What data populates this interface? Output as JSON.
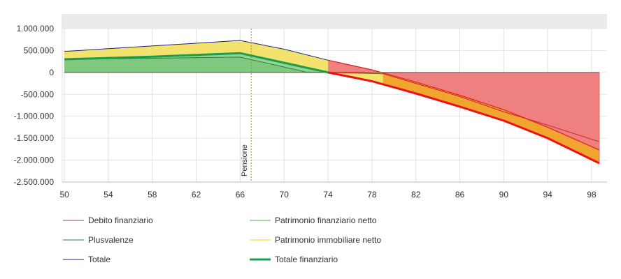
{
  "chart_data": {
    "type": "area",
    "x": [
      50,
      66,
      74,
      98.7
    ],
    "xticks": [
      50,
      54,
      58,
      62,
      66,
      70,
      74,
      78,
      82,
      86,
      90,
      94,
      98
    ],
    "xlim": [
      49.8,
      99.4
    ],
    "ylim": [
      -2500000,
      1000000
    ],
    "yticks": [
      {
        "value": 1000000,
        "label": "1.000.000"
      },
      {
        "value": 500000,
        "label": "500.000"
      },
      {
        "value": 0,
        "label": "0"
      },
      {
        "value": -500000,
        "label": "-500.000"
      },
      {
        "value": -1000000,
        "label": "-1.000.000"
      },
      {
        "value": -1500000,
        "label": "-1.500.000"
      },
      {
        "value": -2000000,
        "label": "-2.000.000"
      },
      {
        "value": -2500000,
        "label": "-2.500.000"
      }
    ],
    "grid": true,
    "legend_position": "bottom",
    "series": [
      {
        "name": "Debito finanziario",
        "color": "#8b4a4a",
        "fill": "#ee6666",
        "points": [
          [
            50,
            0
          ],
          [
            66,
            0
          ],
          [
            74,
            0
          ],
          [
            79,
            -30000
          ],
          [
            82,
            -250000
          ],
          [
            86,
            -550000
          ],
          [
            90,
            -900000
          ],
          [
            94,
            -1200000
          ],
          [
            98.7,
            -1580000
          ]
        ]
      },
      {
        "name": "Patrimonio finanziario netto",
        "color": "#4caf50",
        "points": [
          [
            50,
            0
          ],
          [
            66,
            0
          ],
          [
            74,
            0
          ],
          [
            98.7,
            0
          ]
        ]
      },
      {
        "name": "Plusvalenze",
        "color": "#1e8a3e",
        "fill": "#4d8f5f",
        "points": [
          [
            50,
            300000
          ],
          [
            66,
            350000
          ],
          [
            72,
            10000
          ],
          [
            74,
            0
          ]
        ]
      },
      {
        "name": "Patrimonio immobiliare netto",
        "color": "#f2d600",
        "fill": "#f2e266",
        "points": [
          [
            50,
            480000
          ],
          [
            66,
            730000
          ],
          [
            74,
            280000
          ],
          [
            79,
            30000
          ]
        ]
      },
      {
        "name": "Totale",
        "color": "#1a237e",
        "points": [
          [
            50,
            480000
          ],
          [
            66,
            730000
          ],
          [
            70,
            530000
          ],
          [
            74,
            280000
          ],
          [
            78,
            60000
          ],
          [
            82,
            -220000
          ],
          [
            86,
            -520000
          ],
          [
            90,
            -850000
          ],
          [
            94,
            -1250000
          ],
          [
            98.7,
            -1770000
          ]
        ]
      },
      {
        "name": "Totale finanziario",
        "color": "#1a9e4b",
        "thick": true,
        "points": [
          [
            50,
            300000
          ],
          [
            54,
            330000
          ],
          [
            58,
            360000
          ],
          [
            62,
            400000
          ],
          [
            66,
            440000
          ],
          [
            70,
            220000
          ],
          [
            74,
            0
          ],
          [
            78,
            -200000
          ],
          [
            82,
            -480000
          ],
          [
            86,
            -780000
          ],
          [
            90,
            -1100000
          ],
          [
            94,
            -1500000
          ],
          [
            98.7,
            -2070000
          ]
        ]
      }
    ],
    "annotations": [
      {
        "label": "Pensione",
        "x": 67,
        "color": "#b8860b"
      }
    ]
  }
}
